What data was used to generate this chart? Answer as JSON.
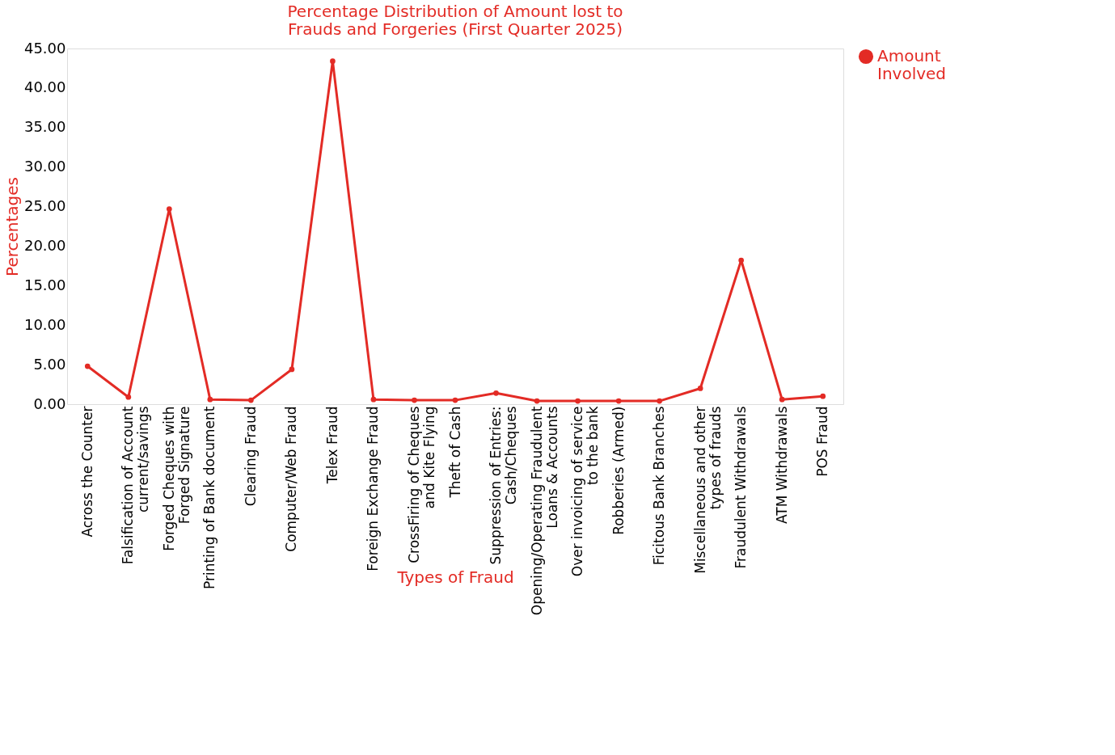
{
  "chart_data": {
    "type": "line",
    "title": "Percentage Distribution of Amount lost to\nFrauds and Forgeries (First Quarter 2025)",
    "xlabel": "Types of Fraud",
    "ylabel": "Percentages",
    "categories": [
      "Across the Counter",
      "Falsification of Account\ncurrent/savings",
      "Forged Cheques with\nForged Signature",
      "Printing of Bank document",
      "Clearing Fraud",
      "Computer/Web Fraud",
      "Telex Fraud",
      "Foreign Exchange Fraud",
      "CrossFiring of Cheques\nand Kite Flying",
      "Theft of Cash",
      "Suppression of Entries:\nCash/Cheques",
      "Opening/Operating Fraudulent\nLoans & Accounts",
      "Over invoicing of service\nto the bank",
      "Robberies (Armed)",
      "Ficitous Bank Branches",
      "Miscellaneous and other\ntypes of frauds",
      "Fraudulent Withdrawals",
      "ATM Withdrawals",
      "POS Fraud"
    ],
    "series": [
      {
        "name": "Amount\nInvolved",
        "color": "#e32b25",
        "values": [
          4.8,
          0.9,
          24.7,
          0.6,
          0.5,
          4.4,
          43.4,
          0.6,
          0.5,
          0.5,
          1.4,
          0.4,
          0.4,
          0.4,
          0.4,
          2.0,
          18.2,
          0.6,
          1.0
        ]
      }
    ],
    "ylim": [
      0,
      45
    ],
    "yticks": [
      {
        "value": 0,
        "label": "0.00"
      },
      {
        "value": 5,
        "label": "5.00"
      },
      {
        "value": 10,
        "label": "10.00"
      },
      {
        "value": 15,
        "label": "15.00"
      },
      {
        "value": 20,
        "label": "20.00"
      },
      {
        "value": 25,
        "label": "25.00"
      },
      {
        "value": 30,
        "label": "30.00"
      },
      {
        "value": 35,
        "label": "35.00"
      },
      {
        "value": 40,
        "label": "40.00"
      },
      {
        "value": 45,
        "label": "45.00"
      }
    ],
    "grid": false,
    "legend": "right",
    "marker": "circle",
    "line_style": "solid"
  }
}
